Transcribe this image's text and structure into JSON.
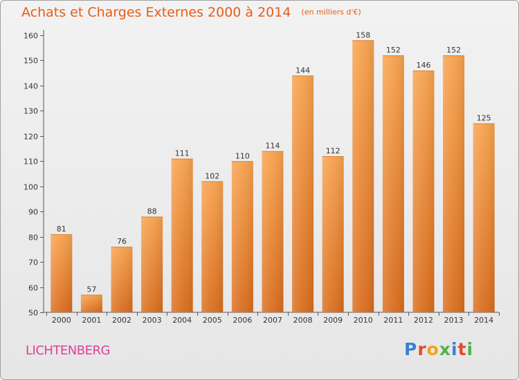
{
  "header": {
    "title": "Achats et Charges Externes 2000 à 2014",
    "subtitle": "(en milliers d'€)"
  },
  "footer": {
    "town": "LICHTENBERG",
    "logo_text": "Proxiti"
  },
  "colors": {
    "bar_light": "#f7a04c",
    "bar_dark": "#d96d1e",
    "title": "#e65c18",
    "town": "#e0409a"
  },
  "chart_data": {
    "type": "bar",
    "title": "Achats et Charges Externes 2000 à 2014",
    "subtitle": "(en milliers d'€)",
    "xlabel": "",
    "ylabel": "",
    "categories": [
      "2000",
      "2001",
      "2002",
      "2003",
      "2004",
      "2005",
      "2006",
      "2007",
      "2008",
      "2009",
      "2010",
      "2011",
      "2012",
      "2013",
      "2014"
    ],
    "values": [
      81,
      57,
      76,
      88,
      111,
      102,
      110,
      114,
      144,
      112,
      158,
      152,
      146,
      152,
      125
    ],
    "ylim": [
      50,
      160
    ],
    "yticks": [
      50,
      60,
      70,
      80,
      90,
      100,
      110,
      120,
      130,
      140,
      150,
      160
    ],
    "grid": false,
    "legend": "none"
  }
}
